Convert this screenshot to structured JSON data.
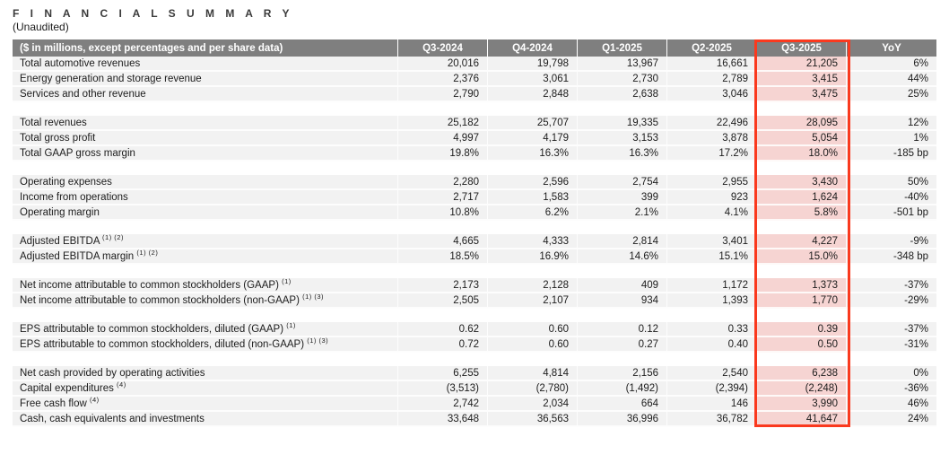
{
  "page": {
    "title": "F I N A N C I A L   S U M M A R Y",
    "subtitle": "(Unaudited)"
  },
  "colors": {
    "header_bg": "#7f7f7f",
    "header_text": "#ffffff",
    "row_bg": "#f2f2f2",
    "highlight_cell_bg": "#f6d4d2",
    "highlight_border": "#fa391e",
    "body_text": "#1c1c1c"
  },
  "table": {
    "columns": [
      "($ in millions, except percentages and per share data)",
      "Q3-2024",
      "Q4-2024",
      "Q1-2025",
      "Q2-2025",
      "Q3-2025",
      "YoY"
    ],
    "highlighted_column": "Q3-2025",
    "rows": [
      {
        "type": "data",
        "label": "Total automotive revenues",
        "sup": "",
        "values": [
          "20,016",
          "19,798",
          "13,967",
          "16,661",
          "21,205",
          "6%"
        ]
      },
      {
        "type": "data",
        "label": "Energy generation and storage revenue",
        "sup": "",
        "values": [
          "2,376",
          "3,061",
          "2,730",
          "2,789",
          "3,415",
          "44%"
        ]
      },
      {
        "type": "data",
        "label": "Services and other revenue",
        "sup": "",
        "values": [
          "2,790",
          "2,848",
          "2,638",
          "3,046",
          "3,475",
          "25%"
        ]
      },
      {
        "type": "spacer"
      },
      {
        "type": "data",
        "label": "Total revenues",
        "sup": "",
        "values": [
          "25,182",
          "25,707",
          "19,335",
          "22,496",
          "28,095",
          "12%"
        ]
      },
      {
        "type": "data",
        "label": "Total gross profit",
        "sup": "",
        "values": [
          "4,997",
          "4,179",
          "3,153",
          "3,878",
          "5,054",
          "1%"
        ]
      },
      {
        "type": "data",
        "label": "Total GAAP gross margin",
        "sup": "",
        "values": [
          "19.8%",
          "16.3%",
          "16.3%",
          "17.2%",
          "18.0%",
          "-185 bp"
        ]
      },
      {
        "type": "spacer"
      },
      {
        "type": "data",
        "label": "Operating expenses",
        "sup": "",
        "values": [
          "2,280",
          "2,596",
          "2,754",
          "2,955",
          "3,430",
          "50%"
        ]
      },
      {
        "type": "data",
        "label": "Income from operations",
        "sup": "",
        "values": [
          "2,717",
          "1,583",
          "399",
          "923",
          "1,624",
          "-40%"
        ]
      },
      {
        "type": "data",
        "label": "Operating margin",
        "sup": "",
        "values": [
          "10.8%",
          "6.2%",
          "2.1%",
          "4.1%",
          "5.8%",
          "-501 bp"
        ]
      },
      {
        "type": "spacer"
      },
      {
        "type": "data",
        "label": "Adjusted EBITDA",
        "sup": "(1) (2)",
        "values": [
          "4,665",
          "4,333",
          "2,814",
          "3,401",
          "4,227",
          "-9%"
        ]
      },
      {
        "type": "data",
        "label": "Adjusted EBITDA margin",
        "sup": "(1) (2)",
        "values": [
          "18.5%",
          "16.9%",
          "14.6%",
          "15.1%",
          "15.0%",
          "-348 bp"
        ]
      },
      {
        "type": "spacer"
      },
      {
        "type": "data",
        "label": "Net income attributable to common stockholders (GAAP)",
        "sup": "(1)",
        "values": [
          "2,173",
          "2,128",
          "409",
          "1,172",
          "1,373",
          "-37%"
        ]
      },
      {
        "type": "data",
        "label": "Net income attributable to common stockholders (non-GAAP)",
        "sup": "(1) (3)",
        "values": [
          "2,505",
          "2,107",
          "934",
          "1,393",
          "1,770",
          "-29%"
        ]
      },
      {
        "type": "spacer"
      },
      {
        "type": "data",
        "label": "EPS attributable to common stockholders, diluted (GAAP)",
        "sup": "(1)",
        "values": [
          "0.62",
          "0.60",
          "0.12",
          "0.33",
          "0.39",
          "-37%"
        ]
      },
      {
        "type": "data",
        "label": "EPS attributable to common stockholders, diluted (non-GAAP)",
        "sup": "(1) (3)",
        "values": [
          "0.72",
          "0.60",
          "0.27",
          "0.40",
          "0.50",
          "-31%"
        ]
      },
      {
        "type": "spacer"
      },
      {
        "type": "data",
        "label": "Net cash provided by operating activities",
        "sup": "",
        "values": [
          "6,255",
          "4,814",
          "2,156",
          "2,540",
          "6,238",
          "0%"
        ]
      },
      {
        "type": "data",
        "label": "Capital expenditures",
        "sup": "(4)",
        "values": [
          "(3,513)",
          "(2,780)",
          "(1,492)",
          "(2,394)",
          "(2,248)",
          "-36%"
        ]
      },
      {
        "type": "data",
        "label": "Free cash flow",
        "sup": "(4)",
        "values": [
          "2,742",
          "2,034",
          "664",
          "146",
          "3,990",
          "46%"
        ]
      },
      {
        "type": "data",
        "label": "Cash, cash equivalents and investments",
        "sup": "",
        "values": [
          "33,648",
          "36,563",
          "36,996",
          "36,782",
          "41,647",
          "24%"
        ]
      }
    ]
  }
}
